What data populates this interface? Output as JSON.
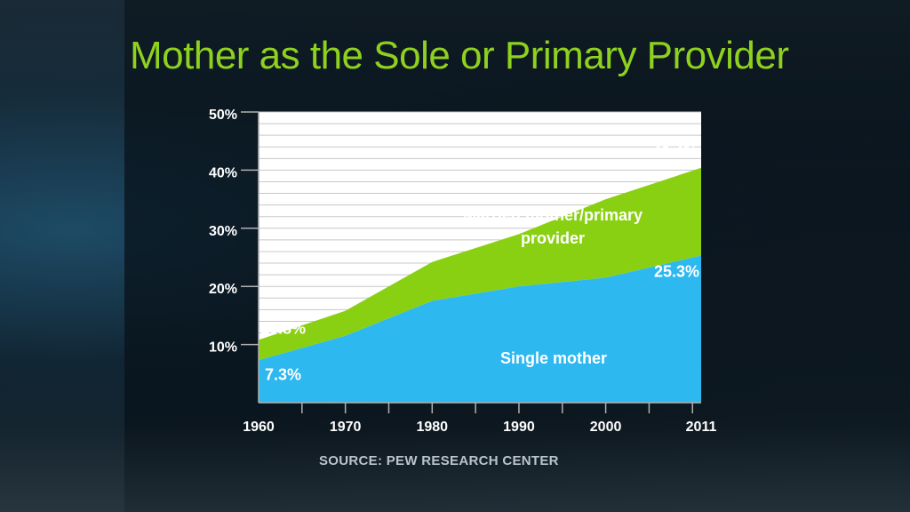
{
  "title": "Mother as the Sole or Primary Provider",
  "source": "SOURCE: PEW RESEARCH CENTER",
  "colors": {
    "title": "#8ed11e",
    "married": "#8ad012",
    "single": "#2db8f0",
    "plot_background": "#ffffff",
    "gridline": "#c8c8c8"
  },
  "chart_data": {
    "type": "area",
    "stacked": true,
    "title": "Mother as the Sole or Primary Provider",
    "xlabel": "",
    "ylabel": "",
    "x": [
      1960,
      1970,
      1980,
      1990,
      2000,
      2011
    ],
    "x_tick_labels": [
      "1960",
      "1970",
      "1980",
      "1990",
      "2000",
      "2011"
    ],
    "ylim": [
      0,
      50
    ],
    "y_ticks": [
      10,
      20,
      30,
      40,
      50
    ],
    "y_tick_labels": [
      "10%",
      "20%",
      "30%",
      "40%",
      "50%"
    ],
    "grid": true,
    "series": [
      {
        "name": "Single mother",
        "values": [
          7.3,
          11.5,
          17.5,
          20.0,
          21.5,
          25.3
        ]
      },
      {
        "name": "Married mother/primary provider",
        "values": [
          3.5,
          4.3,
          6.7,
          9.0,
          13.5,
          15.1
        ]
      }
    ],
    "totals": [
      10.8,
      15.8,
      24.2,
      29.0,
      35.0,
      40.4
    ],
    "annotations": [
      {
        "text": "10.8%",
        "x": 1960,
        "y": 10.8
      },
      {
        "text": "7.3%",
        "x": 1960,
        "y": 7.3
      },
      {
        "text": "40.4%",
        "x": 2011,
        "y": 40.4
      },
      {
        "text": "25.3%",
        "x": 2011,
        "y": 25.3
      }
    ],
    "series_labels": [
      {
        "lines": [
          "Married mother/primary",
          "provider"
        ]
      },
      {
        "lines": [
          "Single mother"
        ]
      }
    ]
  }
}
